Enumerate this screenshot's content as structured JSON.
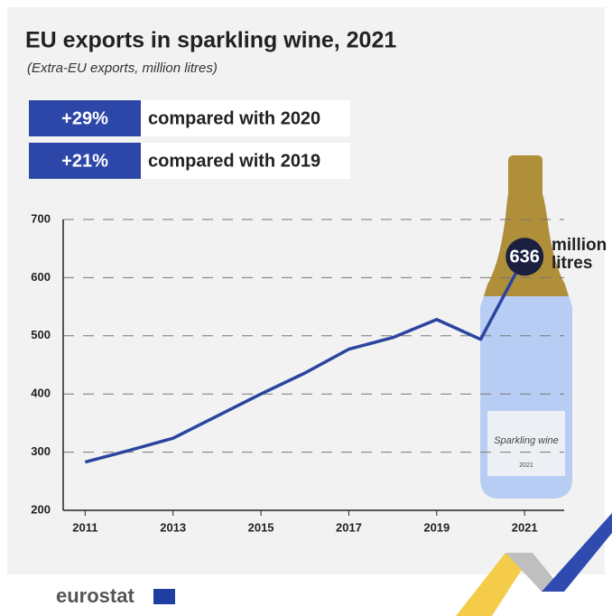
{
  "chart_data": {
    "type": "line",
    "title": "EU exports in sparkling wine, 2021",
    "subtitle": "(Extra-EU exports, million litres)",
    "highlights": [
      {
        "value_label": "+29%",
        "text": "compared with 2020"
      },
      {
        "value_label": "+21%",
        "text": "compared with 2019"
      }
    ],
    "x": [
      2011,
      2012,
      2013,
      2014,
      2015,
      2016,
      2017,
      2018,
      2019,
      2020,
      2021
    ],
    "values": [
      283,
      303,
      324,
      362,
      400,
      436,
      477,
      497,
      528,
      494,
      636
    ],
    "color": "#2b44a0",
    "xlim": [
      2010.5,
      2021.9
    ],
    "xticks": [
      2011,
      2013,
      2015,
      2017,
      2019,
      2021
    ],
    "ylim": [
      200,
      700
    ],
    "yticks": [
      200,
      300,
      400,
      500,
      600,
      700
    ],
    "grid": true,
    "annotation": "million litres",
    "bottle_label": "Sparkling wine",
    "bottle_year": "2021",
    "source": "eurostat"
  }
}
